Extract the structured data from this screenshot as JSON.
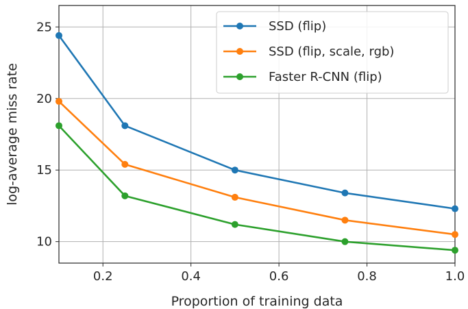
{
  "chart_data": {
    "type": "line",
    "xlabel": "Proportion of training data",
    "ylabel": "log-average miss rate",
    "xlim": [
      0.1,
      1.0
    ],
    "ylim": [
      8.5,
      26.5
    ],
    "xticks": [
      0.2,
      0.4,
      0.6,
      0.8,
      1.0
    ],
    "xtick_labels": [
      "0.2",
      "0.4",
      "0.6",
      "0.8",
      "1.0"
    ],
    "yticks": [
      10,
      15,
      20,
      25
    ],
    "ytick_labels": [
      "10",
      "15",
      "20",
      "25"
    ],
    "grid": true,
    "legend_position": "top-right",
    "x": [
      0.1,
      0.25,
      0.5,
      0.75,
      1.0
    ],
    "series": [
      {
        "name": "SSD (flip)",
        "color": "#1f77b4",
        "values": [
          24.4,
          18.1,
          15.0,
          13.4,
          12.3
        ]
      },
      {
        "name": "SSD (flip, scale, rgb)",
        "color": "#ff7f0e",
        "values": [
          19.8,
          15.4,
          13.1,
          11.5,
          10.5
        ]
      },
      {
        "name": "Faster R-CNN (flip)",
        "color": "#2ca02c",
        "values": [
          18.1,
          13.2,
          11.2,
          10.0,
          9.4
        ]
      }
    ]
  }
}
